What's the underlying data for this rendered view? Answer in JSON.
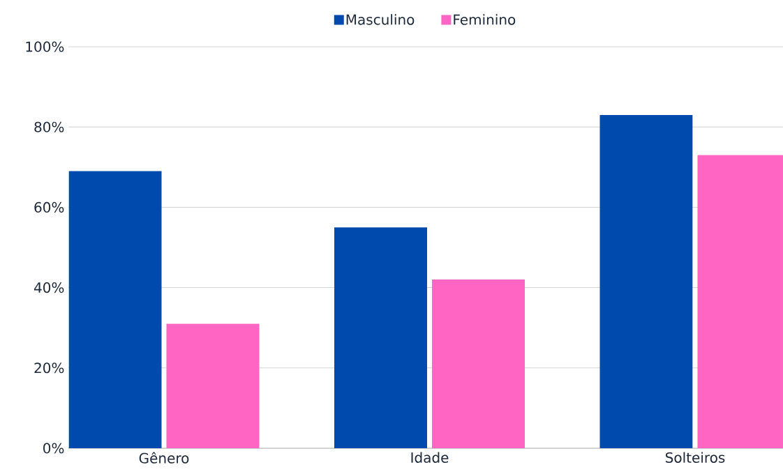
{
  "chart_data": {
    "type": "bar",
    "categories": [
      "Gênero",
      "Idade",
      "Solteiros"
    ],
    "series": [
      {
        "name": "Masculino",
        "color": "#004aad",
        "values": [
          69,
          55,
          83
        ]
      },
      {
        "name": "Feminino",
        "color": "#ff66c4",
        "values": [
          31,
          42,
          73
        ]
      }
    ],
    "ylim": [
      0,
      100
    ],
    "yticks": [
      {
        "value": 0,
        "label": "0%"
      },
      {
        "value": 20,
        "label": "20%"
      },
      {
        "value": 40,
        "label": "40%"
      },
      {
        "value": 60,
        "label": "60%"
      },
      {
        "value": 80,
        "label": "80%"
      },
      {
        "value": 100,
        "label": "100%"
      }
    ],
    "grid": "y",
    "legend": "top"
  }
}
